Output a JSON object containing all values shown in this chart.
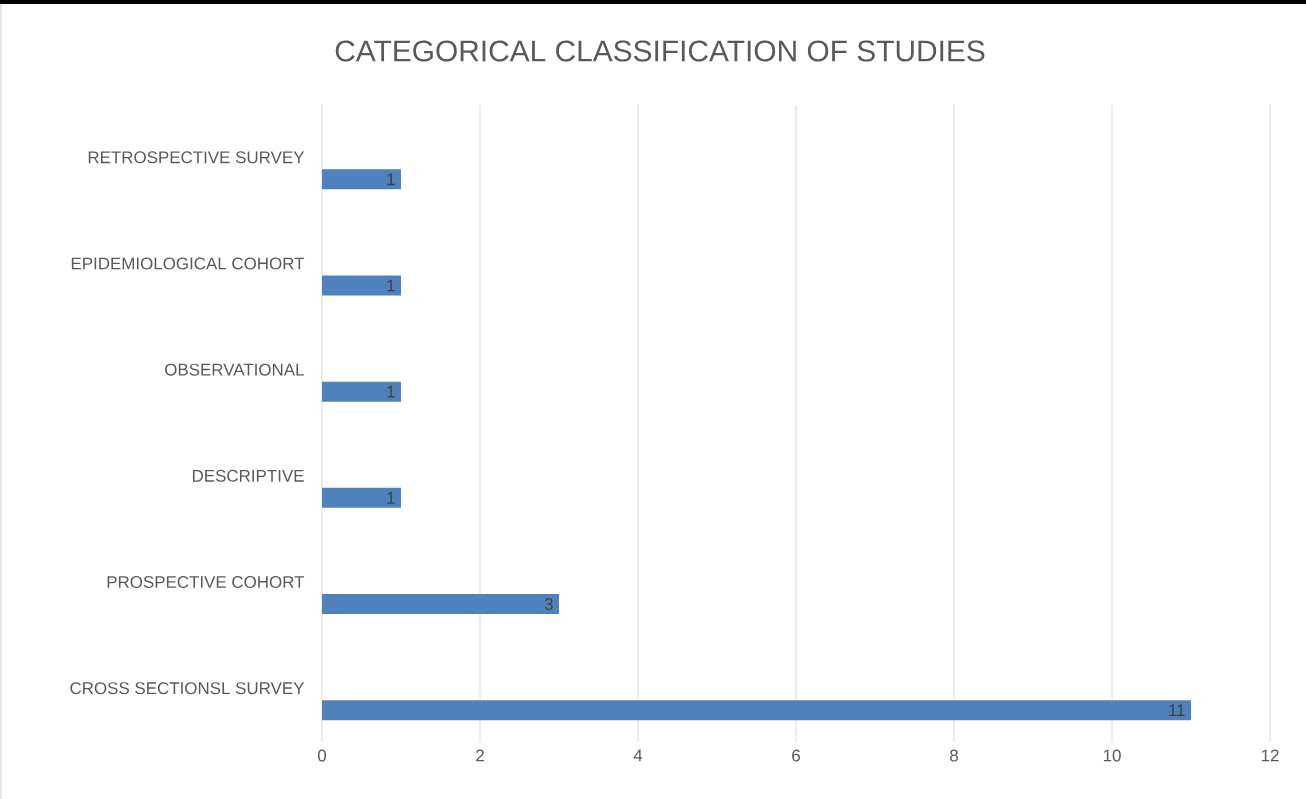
{
  "chart_data": {
    "type": "bar",
    "orientation": "horizontal",
    "title": "CATEGORICAL CLASSIFICATION OF STUDIES",
    "categories": [
      "RETROSPECTIVE SURVEY",
      "EPIDEMIOLOGICAL COHORT",
      "OBSERVATIONAL",
      "DESCRIPTIVE",
      "PROSPECTIVE COHORT",
      "CROSS SECTIONSL SURVEY"
    ],
    "values": [
      1,
      1,
      1,
      1,
      3,
      11
    ],
    "color": "#4f81bd",
    "xlim": [
      0,
      12
    ],
    "xticks": [
      0,
      2,
      4,
      6,
      8,
      10,
      12
    ],
    "grid": "x",
    "data_labels": true
  }
}
